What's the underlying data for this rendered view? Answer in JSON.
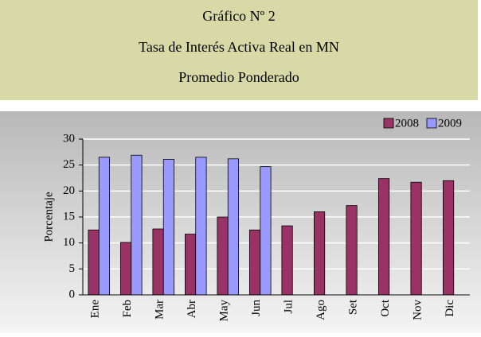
{
  "chart_data": {
    "type": "bar",
    "title": "Gráfico Nº 2",
    "subtitle": [
      "Tasa de Interés Activa Real en MN",
      "Promedio Ponderado"
    ],
    "y_label": "Porcentaje",
    "categories": [
      "Ene",
      "Feb",
      "Mar",
      "Abr",
      "May",
      "Jun",
      "Jul",
      "Ago",
      "Set",
      "Oct",
      "Nov",
      "Dic"
    ],
    "series": [
      {
        "name": "2008",
        "color": "#993366",
        "values": [
          12.5,
          10.1,
          12.7,
          11.7,
          15,
          12.5,
          13.3,
          16,
          17.2,
          22.4,
          21.7,
          22
        ]
      },
      {
        "name": "2009",
        "color": "#9999ff",
        "values": [
          26.5,
          26.9,
          26.1,
          26.5,
          26.2,
          24.7,
          null,
          null,
          null,
          null,
          null,
          null
        ]
      }
    ],
    "ylim": [
      0,
      30
    ],
    "yticks": [
      0,
      5,
      10,
      15,
      20,
      25,
      30
    ],
    "grid": true,
    "legend": "top-right"
  }
}
